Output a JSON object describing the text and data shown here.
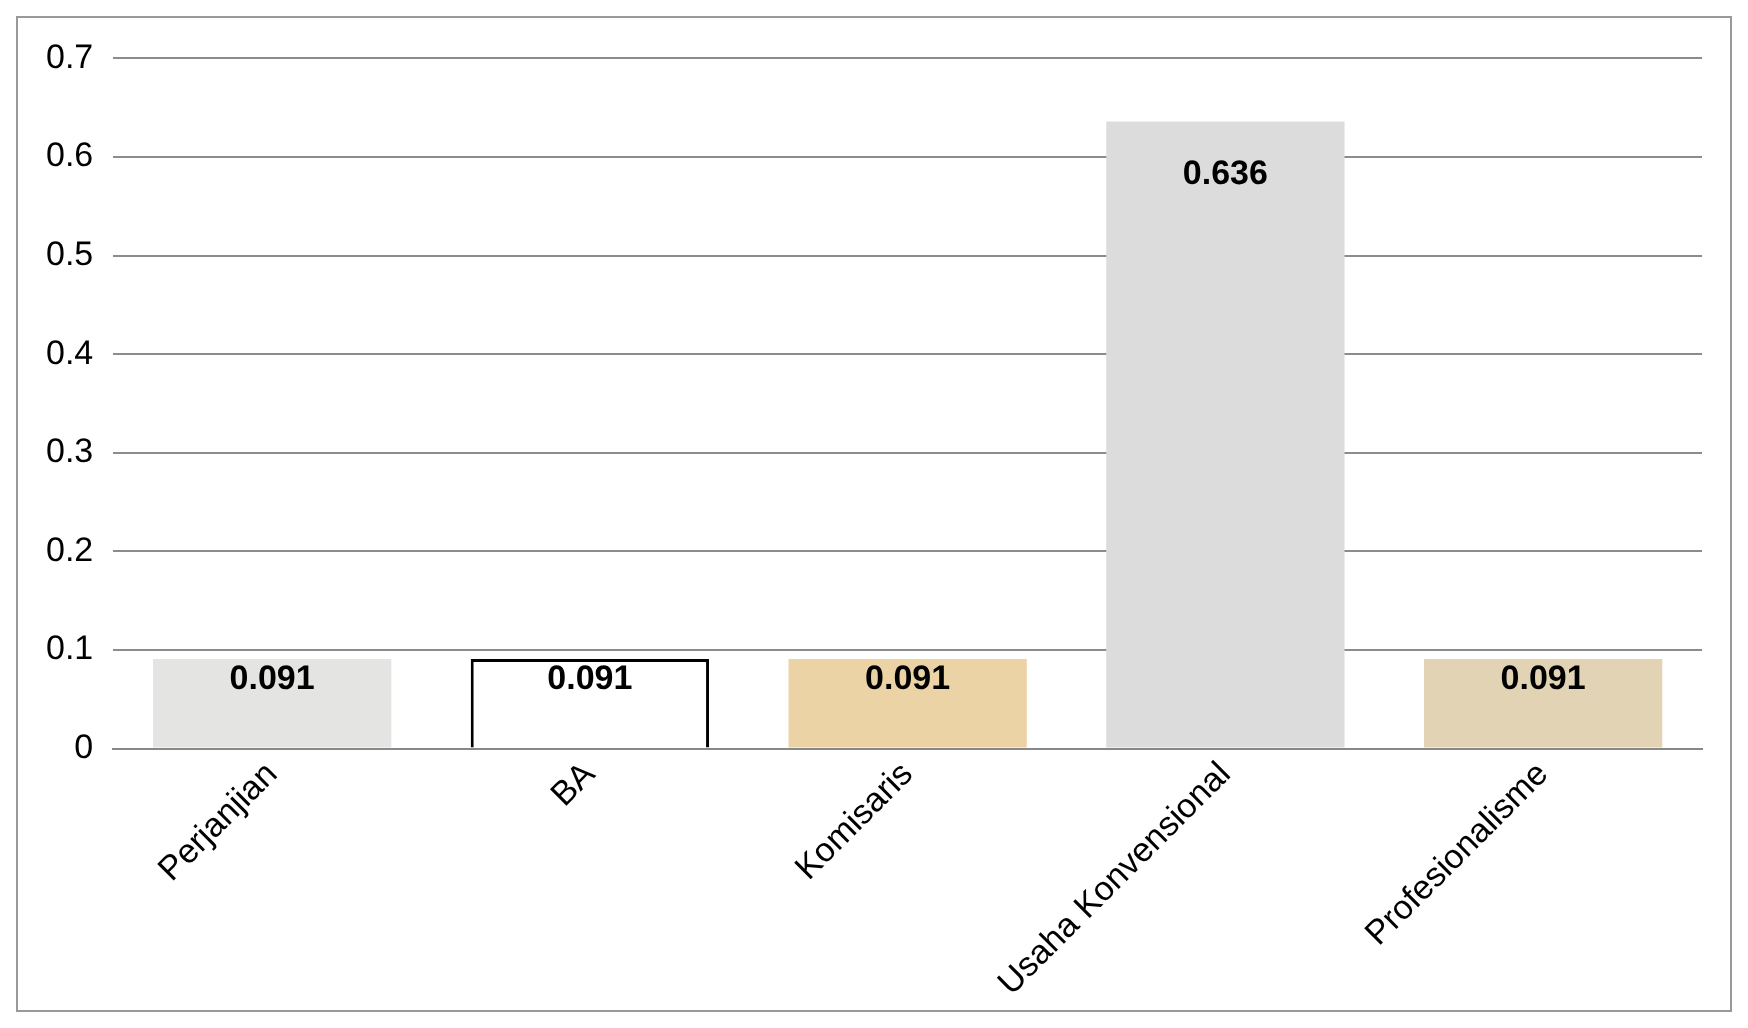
{
  "chart_data": {
    "type": "bar",
    "categories": [
      "Perjanjian",
      "BA",
      "Komisaris",
      "Usaha Konvensional",
      "Profesionalisme"
    ],
    "values": [
      0.091,
      0.091,
      0.091,
      0.636,
      0.091
    ],
    "colors": [
      "#e4e4e2",
      "#ffffff",
      "#ecd3a6",
      "#dcdcdc",
      "#e2d3b4"
    ],
    "ylim": [
      0,
      0.7
    ],
    "yticks": [
      0,
      0.1,
      0.2,
      0.3,
      0.4,
      0.5,
      0.6,
      0.7
    ],
    "grid": "y",
    "data_labels": true,
    "legend": false
  }
}
